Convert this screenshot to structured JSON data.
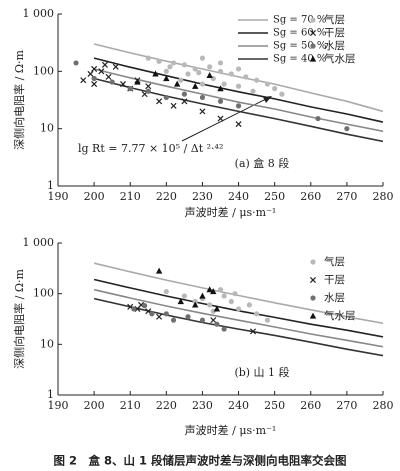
{
  "chart_data": [
    {
      "type": "scatter",
      "title": "(a) 盒 8 段",
      "x_label": "声波时差 / μs·m⁻¹",
      "y_label": "深侧向电阻率 / Ω·m",
      "xlim": [
        190,
        280
      ],
      "xticks": [
        190,
        200,
        210,
        220,
        230,
        240,
        250,
        260,
        270,
        280
      ],
      "ylim": [
        1,
        1000
      ],
      "yticks": [
        1,
        10,
        100,
        {
          "value": 1000,
          "label": "1 000"
        }
      ],
      "y_scale": "log",
      "annotation": "lg Rt = 7.77 × 10⁵ / Δt ²·⁴²",
      "series": [
        {
          "name": "Sg = 70 %",
          "style": "line",
          "color": "#aaaaaa",
          "x": [
            200,
            210,
            220,
            230,
            240,
            250,
            260,
            270,
            280
          ],
          "values": [
            300,
            210,
            150,
            110,
            80,
            60,
            42,
            30,
            20
          ]
        },
        {
          "name": "Sg = 60 %",
          "style": "line",
          "color": "#222222",
          "x": [
            200,
            210,
            220,
            230,
            240,
            250,
            260,
            270,
            280
          ],
          "values": [
            170,
            118,
            84,
            60,
            44,
            33,
            24,
            18,
            13
          ]
        },
        {
          "name": "Sg = 50 %",
          "style": "line",
          "color": "#888888",
          "x": [
            200,
            210,
            220,
            230,
            240,
            250,
            260,
            270,
            280
          ],
          "values": [
            110,
            77,
            55,
            40,
            29,
            22,
            16,
            12,
            9
          ]
        },
        {
          "name": "Sg = 40 %",
          "style": "line",
          "color": "#333333",
          "x": [
            200,
            210,
            220,
            230,
            240,
            250,
            260,
            270,
            280
          ],
          "values": [
            75,
            52,
            37,
            27,
            20,
            15,
            11,
            8,
            6
          ]
        },
        {
          "name": "气层",
          "style": "circle",
          "color": "#b8b8b8",
          "x": [
            215,
            218,
            222,
            225,
            228,
            230,
            232,
            235,
            238,
            240,
            242,
            245,
            248,
            250,
            220,
            226,
            233,
            236,
            240,
            244,
            230,
            224,
            252,
            235,
            229,
            221
          ],
          "values": [
            170,
            150,
            140,
            130,
            110,
            170,
            120,
            100,
            90,
            110,
            80,
            70,
            60,
            50,
            100,
            90,
            75,
            60,
            55,
            45,
            60,
            70,
            40,
            140,
            95,
            120
          ]
        },
        {
          "name": "干层",
          "style": "cross",
          "color": "#222222",
          "x": [
            197,
            199,
            200,
            202,
            204,
            206,
            208,
            210,
            212,
            214,
            215,
            218,
            222,
            225,
            230,
            235,
            240,
            200,
            203
          ],
          "values": [
            70,
            90,
            60,
            100,
            80,
            120,
            60,
            50,
            70,
            40,
            55,
            30,
            25,
            30,
            20,
            15,
            12,
            110,
            130
          ]
        },
        {
          "name": "水层",
          "style": "circle",
          "color": "#707070",
          "x": [
            195,
            200,
            205,
            210,
            215,
            220,
            225,
            230,
            235,
            240,
            262,
            270
          ],
          "values": [
            140,
            75,
            65,
            50,
            45,
            35,
            40,
            35,
            30,
            25,
            15,
            10
          ]
        },
        {
          "name": "气水层",
          "style": "triangle",
          "color": "#111111",
          "x": [
            217,
            220,
            223,
            228,
            232,
            212,
            235
          ],
          "values": [
            90,
            75,
            60,
            55,
            85,
            65,
            50
          ]
        }
      ]
    },
    {
      "type": "scatter",
      "title": "(b) 山 1 段",
      "x_label": "声波时差 / μs·m⁻¹",
      "y_label": "深侧向电阻率 / Ω·m",
      "xlim": [
        190,
        280
      ],
      "xticks": [
        190,
        200,
        210,
        220,
        230,
        240,
        250,
        260,
        270,
        280
      ],
      "ylim": [
        1,
        1000
      ],
      "yticks": [
        1,
        10,
        100,
        {
          "value": 1000,
          "label": "1 000"
        }
      ],
      "y_scale": "log",
      "series": [
        {
          "style": "line",
          "color": "#aaaaaa",
          "x": [
            200,
            210,
            220,
            230,
            240,
            250,
            260,
            270,
            280
          ],
          "values": [
            400,
            270,
            185,
            130,
            92,
            66,
            48,
            35,
            26
          ]
        },
        {
          "style": "line",
          "color": "#222222",
          "x": [
            200,
            210,
            220,
            230,
            240,
            250,
            260,
            270,
            280
          ],
          "values": [
            190,
            130,
            90,
            64,
            46,
            34,
            25,
            19,
            14
          ]
        },
        {
          "style": "line",
          "color": "#888888",
          "x": [
            200,
            210,
            220,
            230,
            240,
            250,
            260,
            270,
            280
          ],
          "values": [
            120,
            82,
            57,
            41,
            30,
            22,
            16,
            12,
            9
          ]
        },
        {
          "style": "line",
          "color": "#333333",
          "x": [
            200,
            210,
            220,
            230,
            240,
            250,
            260,
            270,
            280
          ],
          "values": [
            80,
            55,
            38,
            27,
            20,
            15,
            11,
            8,
            6
          ]
        },
        {
          "name": "气层",
          "style": "circle",
          "color": "#b8b8b8",
          "x": [
            220,
            225,
            228,
            230,
            232,
            235,
            236,
            238,
            240,
            243,
            245,
            248,
            233,
            239
          ],
          "values": [
            110,
            90,
            70,
            80,
            60,
            120,
            90,
            70,
            50,
            60,
            40,
            30,
            45,
            100
          ]
        },
        {
          "name": "干层",
          "style": "cross",
          "color": "#222222",
          "x": [
            210,
            212,
            213,
            215,
            218,
            233,
            244
          ],
          "values": [
            55,
            50,
            60,
            45,
            35,
            30,
            18
          ]
        },
        {
          "name": "水层",
          "style": "circle",
          "color": "#707070",
          "x": [
            211,
            214,
            216,
            220,
            222,
            226,
            230,
            234,
            236
          ],
          "values": [
            50,
            58,
            40,
            40,
            30,
            35,
            30,
            25,
            20
          ]
        },
        {
          "name": "气水层",
          "style": "triangle",
          "color": "#111111",
          "x": [
            218,
            224,
            230,
            232,
            233,
            228,
            234
          ],
          "values": [
            280,
            70,
            90,
            120,
            110,
            60,
            50
          ]
        }
      ]
    }
  ],
  "caption": "图 2　盒 8、山 1 段储层声波时差与深侧向电阻率交会图"
}
